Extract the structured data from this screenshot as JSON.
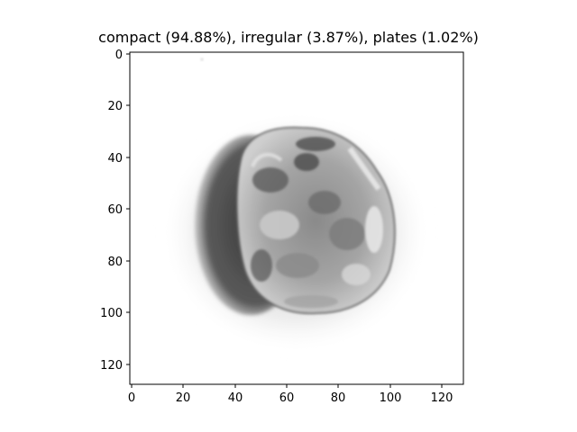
{
  "figure": {
    "title": "compact (94.88%), irregular (3.87%), plates (1.02%)"
  },
  "image": {
    "subject": "grayscale microscope image of a compact particle",
    "pixel_extent": [
      0,
      128
    ]
  },
  "axes": {
    "x_ticks": [
      "0",
      "20",
      "40",
      "60",
      "80",
      "100",
      "120"
    ],
    "y_ticks": [
      "0",
      "20",
      "40",
      "60",
      "80",
      "100",
      "120"
    ]
  }
}
